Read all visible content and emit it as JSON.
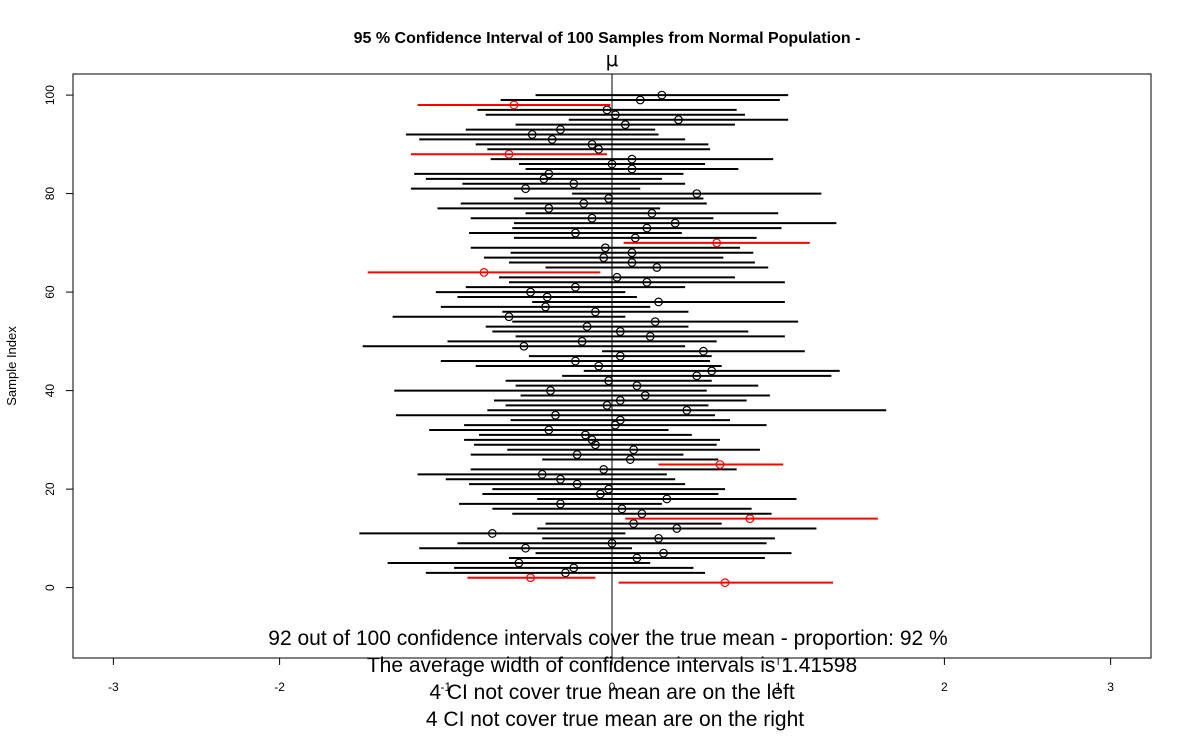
{
  "chart_data": {
    "type": "scatter",
    "title": "95 % Confidence Interval of 100  Samples from Normal Population -",
    "mu_label": "μ",
    "xlabel": "",
    "ylabel": "Sample Index",
    "true_mean": 0,
    "xlim": [
      -3,
      3
    ],
    "ylim": [
      -12,
      104
    ],
    "x_ticks": [
      "-3",
      "-2",
      "-1",
      "0",
      "1",
      "2",
      "3"
    ],
    "y_ticks": [
      "0",
      "20",
      "40",
      "60",
      "80",
      "100"
    ],
    "colors": {
      "covers": "#000000",
      "misses": "#ff0000",
      "mean_line": "#000000"
    },
    "intervals": [
      {
        "i": 1,
        "mean": 0.68,
        "lower": 0.04,
        "upper": 1.33,
        "covers": false
      },
      {
        "i": 2,
        "mean": -0.49,
        "lower": -0.87,
        "upper": -0.1,
        "covers": false
      },
      {
        "i": 3,
        "mean": -0.28,
        "lower": -1.12,
        "upper": 0.56,
        "covers": true
      },
      {
        "i": 4,
        "mean": -0.23,
        "lower": -0.95,
        "upper": 0.49,
        "covers": true
      },
      {
        "i": 5,
        "mean": -0.56,
        "lower": -1.35,
        "upper": 0.23,
        "covers": true
      },
      {
        "i": 6,
        "mean": 0.15,
        "lower": -0.62,
        "upper": 0.92,
        "covers": true
      },
      {
        "i": 7,
        "mean": 0.31,
        "lower": -0.46,
        "upper": 1.08,
        "covers": true
      },
      {
        "i": 8,
        "mean": -0.52,
        "lower": -1.16,
        "upper": 0.12,
        "covers": true
      },
      {
        "i": 9,
        "mean": 0.0,
        "lower": -0.93,
        "upper": 0.93,
        "covers": true
      },
      {
        "i": 10,
        "mean": 0.28,
        "lower": -0.42,
        "upper": 0.98,
        "covers": true
      },
      {
        "i": 11,
        "mean": -0.72,
        "lower": -1.52,
        "upper": 0.08,
        "covers": true
      },
      {
        "i": 12,
        "mean": 0.39,
        "lower": -0.45,
        "upper": 1.23,
        "covers": true
      },
      {
        "i": 13,
        "mean": 0.13,
        "lower": -0.4,
        "upper": 0.66,
        "covers": true
      },
      {
        "i": 14,
        "mean": 0.83,
        "lower": 0.08,
        "upper": 1.6,
        "covers": false
      },
      {
        "i": 15,
        "mean": 0.18,
        "lower": -0.6,
        "upper": 0.96,
        "covers": true
      },
      {
        "i": 16,
        "mean": 0.06,
        "lower": -0.72,
        "upper": 0.84,
        "covers": true
      },
      {
        "i": 17,
        "mean": -0.31,
        "lower": -0.92,
        "upper": 0.3,
        "covers": true
      },
      {
        "i": 18,
        "mean": 0.33,
        "lower": -0.45,
        "upper": 1.11,
        "covers": true
      },
      {
        "i": 19,
        "mean": -0.07,
        "lower": -0.78,
        "upper": 0.64,
        "covers": true
      },
      {
        "i": 20,
        "mean": -0.02,
        "lower": -0.72,
        "upper": 0.68,
        "covers": true
      },
      {
        "i": 21,
        "mean": -0.21,
        "lower": -0.86,
        "upper": 0.44,
        "covers": true
      },
      {
        "i": 22,
        "mean": -0.31,
        "lower": -1.0,
        "upper": 0.38,
        "covers": true
      },
      {
        "i": 23,
        "mean": -0.42,
        "lower": -1.17,
        "upper": 0.33,
        "covers": true
      },
      {
        "i": 24,
        "mean": -0.05,
        "lower": -0.85,
        "upper": 0.75,
        "covers": true
      },
      {
        "i": 25,
        "mean": 0.65,
        "lower": 0.28,
        "upper": 1.03,
        "covers": false
      },
      {
        "i": 26,
        "mean": 0.11,
        "lower": -0.42,
        "upper": 0.64,
        "covers": true
      },
      {
        "i": 27,
        "mean": -0.21,
        "lower": -0.85,
        "upper": 0.43,
        "covers": true
      },
      {
        "i": 28,
        "mean": 0.13,
        "lower": -0.63,
        "upper": 0.89,
        "covers": true
      },
      {
        "i": 29,
        "mean": -0.1,
        "lower": -0.83,
        "upper": 0.63,
        "covers": true
      },
      {
        "i": 30,
        "mean": -0.12,
        "lower": -0.89,
        "upper": 0.65,
        "covers": true
      },
      {
        "i": 31,
        "mean": -0.16,
        "lower": -0.8,
        "upper": 0.48,
        "covers": true
      },
      {
        "i": 32,
        "mean": -0.38,
        "lower": -1.1,
        "upper": 0.34,
        "covers": true
      },
      {
        "i": 33,
        "mean": 0.02,
        "lower": -0.89,
        "upper": 0.93,
        "covers": true
      },
      {
        "i": 34,
        "mean": 0.05,
        "lower": -0.61,
        "upper": 0.71,
        "covers": true
      },
      {
        "i": 35,
        "mean": -0.34,
        "lower": -1.3,
        "upper": 0.62,
        "covers": true
      },
      {
        "i": 36,
        "mean": 0.45,
        "lower": -0.75,
        "upper": 1.65,
        "covers": true
      },
      {
        "i": 37,
        "mean": -0.03,
        "lower": -0.64,
        "upper": 0.58,
        "covers": true
      },
      {
        "i": 38,
        "mean": 0.05,
        "lower": -0.71,
        "upper": 0.81,
        "covers": true
      },
      {
        "i": 39,
        "mean": 0.2,
        "lower": -0.55,
        "upper": 0.95,
        "covers": true
      },
      {
        "i": 40,
        "mean": -0.37,
        "lower": -1.31,
        "upper": 0.57,
        "covers": true
      },
      {
        "i": 41,
        "mean": 0.15,
        "lower": -0.58,
        "upper": 0.88,
        "covers": true
      },
      {
        "i": 42,
        "mean": -0.02,
        "lower": -0.64,
        "upper": 0.6,
        "covers": true
      },
      {
        "i": 43,
        "mean": 0.51,
        "lower": -0.3,
        "upper": 1.32,
        "covers": true
      },
      {
        "i": 44,
        "mean": 0.6,
        "lower": -0.17,
        "upper": 1.37,
        "covers": true
      },
      {
        "i": 45,
        "mean": -0.08,
        "lower": -0.82,
        "upper": 0.66,
        "covers": true
      },
      {
        "i": 46,
        "mean": -0.22,
        "lower": -1.03,
        "upper": 0.59,
        "covers": true
      },
      {
        "i": 47,
        "mean": 0.05,
        "lower": -0.5,
        "upper": 0.6,
        "covers": true
      },
      {
        "i": 48,
        "mean": 0.55,
        "lower": -0.06,
        "upper": 1.16,
        "covers": true
      },
      {
        "i": 49,
        "mean": -0.53,
        "lower": -1.5,
        "upper": 0.44,
        "covers": true
      },
      {
        "i": 50,
        "mean": -0.18,
        "lower": -0.99,
        "upper": 0.63,
        "covers": true
      },
      {
        "i": 51,
        "mean": 0.23,
        "lower": -0.58,
        "upper": 1.04,
        "covers": true
      },
      {
        "i": 52,
        "mean": 0.05,
        "lower": -0.72,
        "upper": 0.82,
        "covers": true
      },
      {
        "i": 53,
        "mean": -0.15,
        "lower": -0.76,
        "upper": 0.46,
        "covers": true
      },
      {
        "i": 54,
        "mean": 0.26,
        "lower": -0.6,
        "upper": 1.12,
        "covers": true
      },
      {
        "i": 55,
        "mean": -0.62,
        "lower": -1.32,
        "upper": 0.08,
        "covers": true
      },
      {
        "i": 56,
        "mean": -0.1,
        "lower": -0.66,
        "upper": 0.46,
        "covers": true
      },
      {
        "i": 57,
        "mean": -0.4,
        "lower": -1.03,
        "upper": 0.23,
        "covers": true
      },
      {
        "i": 58,
        "mean": 0.28,
        "lower": -0.48,
        "upper": 1.04,
        "covers": true
      },
      {
        "i": 59,
        "mean": -0.39,
        "lower": -0.93,
        "upper": 0.15,
        "covers": true
      },
      {
        "i": 60,
        "mean": -0.49,
        "lower": -1.06,
        "upper": 0.08,
        "covers": true
      },
      {
        "i": 61,
        "mean": -0.22,
        "lower": -0.88,
        "upper": 0.44,
        "covers": true
      },
      {
        "i": 62,
        "mean": 0.21,
        "lower": -0.62,
        "upper": 1.04,
        "covers": true
      },
      {
        "i": 63,
        "mean": 0.03,
        "lower": -0.68,
        "upper": 0.74,
        "covers": true
      },
      {
        "i": 64,
        "mean": -0.77,
        "lower": -1.47,
        "upper": -0.07,
        "covers": false
      },
      {
        "i": 65,
        "mean": 0.27,
        "lower": -0.4,
        "upper": 0.94,
        "covers": true
      },
      {
        "i": 66,
        "mean": 0.12,
        "lower": -0.62,
        "upper": 0.86,
        "covers": true
      },
      {
        "i": 67,
        "mean": -0.05,
        "lower": -0.77,
        "upper": 0.67,
        "covers": true
      },
      {
        "i": 68,
        "mean": 0.12,
        "lower": -0.61,
        "upper": 0.85,
        "covers": true
      },
      {
        "i": 69,
        "mean": -0.04,
        "lower": -0.85,
        "upper": 0.77,
        "covers": true
      },
      {
        "i": 70,
        "mean": 0.63,
        "lower": 0.07,
        "upper": 1.19,
        "covers": false
      },
      {
        "i": 71,
        "mean": 0.14,
        "lower": -0.59,
        "upper": 0.87,
        "covers": true
      },
      {
        "i": 72,
        "mean": -0.22,
        "lower": -0.86,
        "upper": 0.42,
        "covers": true
      },
      {
        "i": 73,
        "mean": 0.21,
        "lower": -0.6,
        "upper": 1.02,
        "covers": true
      },
      {
        "i": 74,
        "mean": 0.38,
        "lower": -0.59,
        "upper": 1.35,
        "covers": true
      },
      {
        "i": 75,
        "mean": -0.12,
        "lower": -0.85,
        "upper": 0.61,
        "covers": true
      },
      {
        "i": 76,
        "mean": 0.24,
        "lower": -0.52,
        "upper": 1.0,
        "covers": true
      },
      {
        "i": 77,
        "mean": -0.38,
        "lower": -1.05,
        "upper": 0.29,
        "covers": true
      },
      {
        "i": 78,
        "mean": -0.17,
        "lower": -0.91,
        "upper": 0.57,
        "covers": true
      },
      {
        "i": 79,
        "mean": -0.02,
        "lower": -0.59,
        "upper": 0.55,
        "covers": true
      },
      {
        "i": 80,
        "mean": 0.51,
        "lower": -0.24,
        "upper": 1.26,
        "covers": true
      },
      {
        "i": 81,
        "mean": -0.52,
        "lower": -1.21,
        "upper": 0.17,
        "covers": true
      },
      {
        "i": 82,
        "mean": -0.23,
        "lower": -0.9,
        "upper": 0.44,
        "covers": true
      },
      {
        "i": 83,
        "mean": -0.41,
        "lower": -1.12,
        "upper": 0.3,
        "covers": true
      },
      {
        "i": 84,
        "mean": -0.38,
        "lower": -1.19,
        "upper": 0.43,
        "covers": true
      },
      {
        "i": 85,
        "mean": 0.12,
        "lower": -0.52,
        "upper": 0.76,
        "covers": true
      },
      {
        "i": 86,
        "mean": 0.0,
        "lower": -0.56,
        "upper": 0.56,
        "covers": true
      },
      {
        "i": 87,
        "mean": 0.12,
        "lower": -0.73,
        "upper": 0.97,
        "covers": true
      },
      {
        "i": 88,
        "mean": -0.62,
        "lower": -1.21,
        "upper": -0.03,
        "covers": false
      },
      {
        "i": 89,
        "mean": -0.08,
        "lower": -0.75,
        "upper": 0.59,
        "covers": true
      },
      {
        "i": 90,
        "mean": -0.12,
        "lower": -0.82,
        "upper": 0.58,
        "covers": true
      },
      {
        "i": 91,
        "mean": -0.36,
        "lower": -1.16,
        "upper": 0.44,
        "covers": true
      },
      {
        "i": 92,
        "mean": -0.48,
        "lower": -1.24,
        "upper": 0.28,
        "covers": true
      },
      {
        "i": 93,
        "mean": -0.31,
        "lower": -0.88,
        "upper": 0.26,
        "covers": true
      },
      {
        "i": 94,
        "mean": 0.08,
        "lower": -0.58,
        "upper": 0.74,
        "covers": true
      },
      {
        "i": 95,
        "mean": 0.4,
        "lower": -0.26,
        "upper": 1.06,
        "covers": true
      },
      {
        "i": 96,
        "mean": 0.02,
        "lower": -0.76,
        "upper": 0.8,
        "covers": true
      },
      {
        "i": 97,
        "mean": -0.03,
        "lower": -0.81,
        "upper": 0.75,
        "covers": true
      },
      {
        "i": 98,
        "mean": -0.59,
        "lower": -1.17,
        "upper": -0.01,
        "covers": false
      },
      {
        "i": 99,
        "mean": 0.17,
        "lower": -0.67,
        "upper": 1.01,
        "covers": true
      },
      {
        "i": 100,
        "mean": 0.3,
        "lower": -0.46,
        "upper": 1.06,
        "covers": true
      }
    ],
    "annotations": [
      "92 out of 100 confidence intervals cover the true mean - proportion: 92 %",
      "The average width of confidence intervals is 1.41598",
      "4 CI not cover true mean are on the left",
      "4 CI not cover true mean are on the right"
    ]
  }
}
